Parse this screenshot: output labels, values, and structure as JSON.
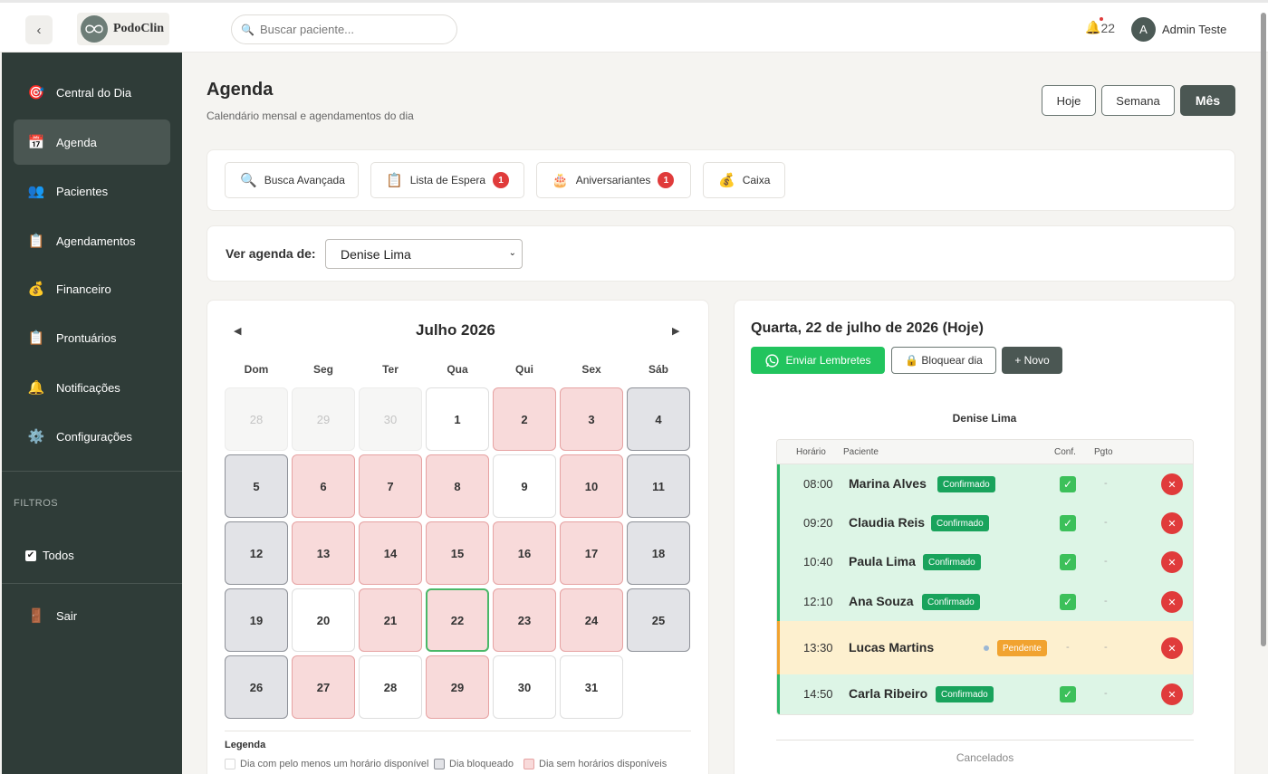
{
  "app": {
    "collapse_icon": "chevron-left-icon",
    "logo_text": "PodoClin",
    "search_placeholder": "Buscar paciente...",
    "notifications_count": "22",
    "user_initial": "A",
    "user_name": "Admin Teste"
  },
  "sidebar": {
    "items": [
      {
        "label": "Central do Dia",
        "icon": "🎯",
        "icon_name": "target-icon"
      },
      {
        "label": "Agenda",
        "icon": "📅",
        "icon_name": "calendar-icon"
      },
      {
        "label": "Pacientes",
        "icon": "👥",
        "icon_name": "users-icon"
      },
      {
        "label": "Agendamentos",
        "icon": "📋",
        "icon_name": "clipboard-icon"
      },
      {
        "label": "Financeiro",
        "icon": "💰",
        "icon_name": "money-bag-icon"
      },
      {
        "label": "Prontuários",
        "icon": "📋",
        "icon_name": "clipboard-icon"
      },
      {
        "label": "Notificações",
        "icon": "🔔",
        "icon_name": "bell-icon"
      },
      {
        "label": "Configurações",
        "icon": "⚙️",
        "icon_name": "gear-icon"
      }
    ],
    "active_index": 1,
    "filters_title": "FILTROS",
    "filter_all": "Todos",
    "logout": "Sair",
    "logout_icon": "🚪"
  },
  "header": {
    "title": "Agenda",
    "subtitle": "Calendário mensal e agendamentos do dia",
    "views": [
      "Hoje",
      "Semana",
      "Mês"
    ],
    "active_view": "Mês"
  },
  "toolbar": [
    {
      "label": "Busca Avançada",
      "icon": "🔍",
      "badge": ""
    },
    {
      "label": "Lista de Espera",
      "icon": "📋",
      "badge": "1"
    },
    {
      "label": "Aniversariantes",
      "icon": "🎂",
      "badge": "1"
    },
    {
      "label": "Caixa",
      "icon": "💰",
      "badge": ""
    }
  ],
  "agenda_filter": {
    "label": "Ver agenda de:",
    "selected": "Denise Lima"
  },
  "calendar": {
    "month_title": "Julho 2026",
    "prev": "◀",
    "next": "▶",
    "weekdays": [
      "Dom",
      "Seg",
      "Ter",
      "Qua",
      "Qui",
      "Sex",
      "Sáb"
    ],
    "days": [
      {
        "n": "28",
        "s": "other"
      },
      {
        "n": "29",
        "s": "other"
      },
      {
        "n": "30",
        "s": "other"
      },
      {
        "n": "1",
        "s": "available"
      },
      {
        "n": "2",
        "s": "full"
      },
      {
        "n": "3",
        "s": "full"
      },
      {
        "n": "4",
        "s": "blocked"
      },
      {
        "n": "5",
        "s": "blocked"
      },
      {
        "n": "6",
        "s": "full"
      },
      {
        "n": "7",
        "s": "full"
      },
      {
        "n": "8",
        "s": "full"
      },
      {
        "n": "9",
        "s": "available"
      },
      {
        "n": "10",
        "s": "full"
      },
      {
        "n": "11",
        "s": "blocked"
      },
      {
        "n": "12",
        "s": "blocked"
      },
      {
        "n": "13",
        "s": "full"
      },
      {
        "n": "14",
        "s": "full"
      },
      {
        "n": "15",
        "s": "full"
      },
      {
        "n": "16",
        "s": "full"
      },
      {
        "n": "17",
        "s": "full"
      },
      {
        "n": "18",
        "s": "blocked"
      },
      {
        "n": "19",
        "s": "blocked"
      },
      {
        "n": "20",
        "s": "available"
      },
      {
        "n": "21",
        "s": "full"
      },
      {
        "n": "22",
        "s": "today"
      },
      {
        "n": "23",
        "s": "full"
      },
      {
        "n": "24",
        "s": "full"
      },
      {
        "n": "25",
        "s": "blocked"
      },
      {
        "n": "26",
        "s": "blocked"
      },
      {
        "n": "27",
        "s": "full"
      },
      {
        "n": "28",
        "s": "available"
      },
      {
        "n": "29",
        "s": "full"
      },
      {
        "n": "30",
        "s": "available"
      },
      {
        "n": "31",
        "s": "available"
      }
    ],
    "legend_title": "Legenda",
    "legend": [
      {
        "label": "Dia com pelo menos um horário disponível",
        "color": "#ffffff",
        "border": "#d7d7d7"
      },
      {
        "label": "Dia bloqueado",
        "color": "#e2e3e7",
        "border": "#8e9198"
      },
      {
        "label": "Dia sem horários disponíveis",
        "color": "#f8dada",
        "border": "#e6a2a2"
      }
    ]
  },
  "day_panel": {
    "title": "Quarta, 22 de julho de 2026 (Hoje)",
    "send_reminders": "Enviar Lembretes",
    "block_day": "🔒 Bloquear dia",
    "new": "+ Novo",
    "professional": "Denise Lima",
    "columns": [
      "Horário",
      "Paciente",
      "Conf.",
      "Pgto"
    ],
    "appointments": [
      {
        "time": "08:00",
        "patient": "Marina Alves",
        "status": "Confirmado",
        "state": "conf",
        "pgto": "-"
      },
      {
        "time": "09:20",
        "patient": "Claudia Reis",
        "status": "Confirmado",
        "state": "conf",
        "pgto": "-"
      },
      {
        "time": "10:40",
        "patient": "Paula Lima",
        "status": "Confirmado",
        "state": "conf",
        "pgto": "-"
      },
      {
        "time": "12:10",
        "patient": "Ana Souza",
        "status": "Confirmado",
        "state": "conf",
        "pgto": "-"
      },
      {
        "time": "13:30",
        "patient": "Lucas Martins",
        "status": "Pendente",
        "state": "pend",
        "pgto": "-",
        "conf": "-"
      },
      {
        "time": "14:50",
        "patient": "Carla Ribeiro",
        "status": "Confirmado",
        "state": "conf",
        "pgto": "-"
      }
    ],
    "cancelled_title": "Cancelados"
  },
  "colors": {
    "sidebar_bg": "#2f3c38",
    "accent_dark": "#4b5753",
    "whatsapp_green": "#22c45e",
    "confirmed_green": "#19a35c",
    "pending_orange": "#f1a330",
    "danger_red": "#e03b3b"
  }
}
